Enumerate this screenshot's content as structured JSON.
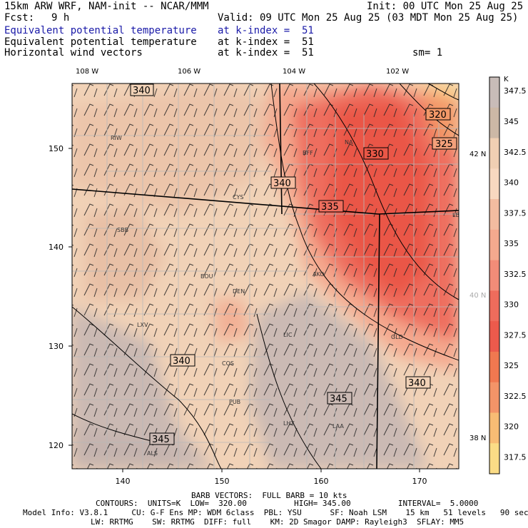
{
  "header": {
    "left_title": "15km ARW WRF, NAM-init -- NCAR/MMM",
    "init": "Init: 00 UTC Mon 25 Aug 25",
    "fcst_label": "Fcst:",
    "fcst_value": "9 h",
    "valid": "Valid: 09 UTC Mon 25 Aug 25 (03 MDT Mon 25 Aug 25)",
    "fields": [
      {
        "name": "Equivalent potential temperature",
        "level": "at k-index =  51",
        "highlight": true
      },
      {
        "name": "Equivalent potential temperature",
        "level": "at k-index =  51",
        "highlight": false
      },
      {
        "name": "Horizontal wind vectors",
        "level": "at k-index =  51",
        "highlight": false
      }
    ],
    "smoothing": "sm= 1"
  },
  "map": {
    "top_lon_labels": [
      "108 W",
      "106 W",
      "104 W",
      "102 W"
    ],
    "left_y_ticks": [
      "150",
      "140",
      "130",
      "120"
    ],
    "bottom_x_ticks": [
      "140",
      "150",
      "160",
      "170"
    ],
    "right_lat_labels": [
      "42 N",
      "40 N",
      "38 N"
    ],
    "contour_labels": [
      "340",
      "320",
      "325",
      "330",
      "340",
      "335",
      "340",
      "345",
      "340",
      "345"
    ],
    "stations": [
      "RIW",
      "BFF",
      "NA",
      "CYS",
      "LBF",
      "SBB",
      "BOU",
      "AKO",
      "DEN",
      "LIC",
      "GLD",
      "LXV",
      "COS",
      "PUB",
      "LHX",
      "LAA",
      "ALS"
    ]
  },
  "colorbar": {
    "unit": "K",
    "levels": [
      "347.5",
      "345",
      "342.5",
      "340",
      "337.5",
      "335",
      "332.5",
      "330",
      "327.5",
      "325",
      "322.5",
      "320",
      "317.5"
    ],
    "colors": [
      "#c8bcb8",
      "#ccb8a6",
      "#f0cfb3",
      "#f8d8c0",
      "#f3bca0",
      "#f4a98e",
      "#f28c78",
      "#ee6c5c",
      "#ec5a4c",
      "#f07850",
      "#f39468",
      "#f8bc74",
      "#fbdc86"
    ]
  },
  "footer": {
    "barb_line": "BARB VECTORS:  FULL BARB = 10 kts",
    "contours_line": "CONTOURS:  UNITS=K  LOW=  320.00          HIGH= 345.00          INTERVAL=  5.0000",
    "model_line1": "Model Info: V3.8.1     CU: G-F Ens MP: WDM 6class  PBL: YSU      SF: Noah LSM    15 km   51 levels   90 sec",
    "model_line2": "LW: RRTMG    SW: RRTMG  DIFF: full    KM: 2D Smagor DAMP: Rayleigh3  SFLAY: MM5"
  }
}
